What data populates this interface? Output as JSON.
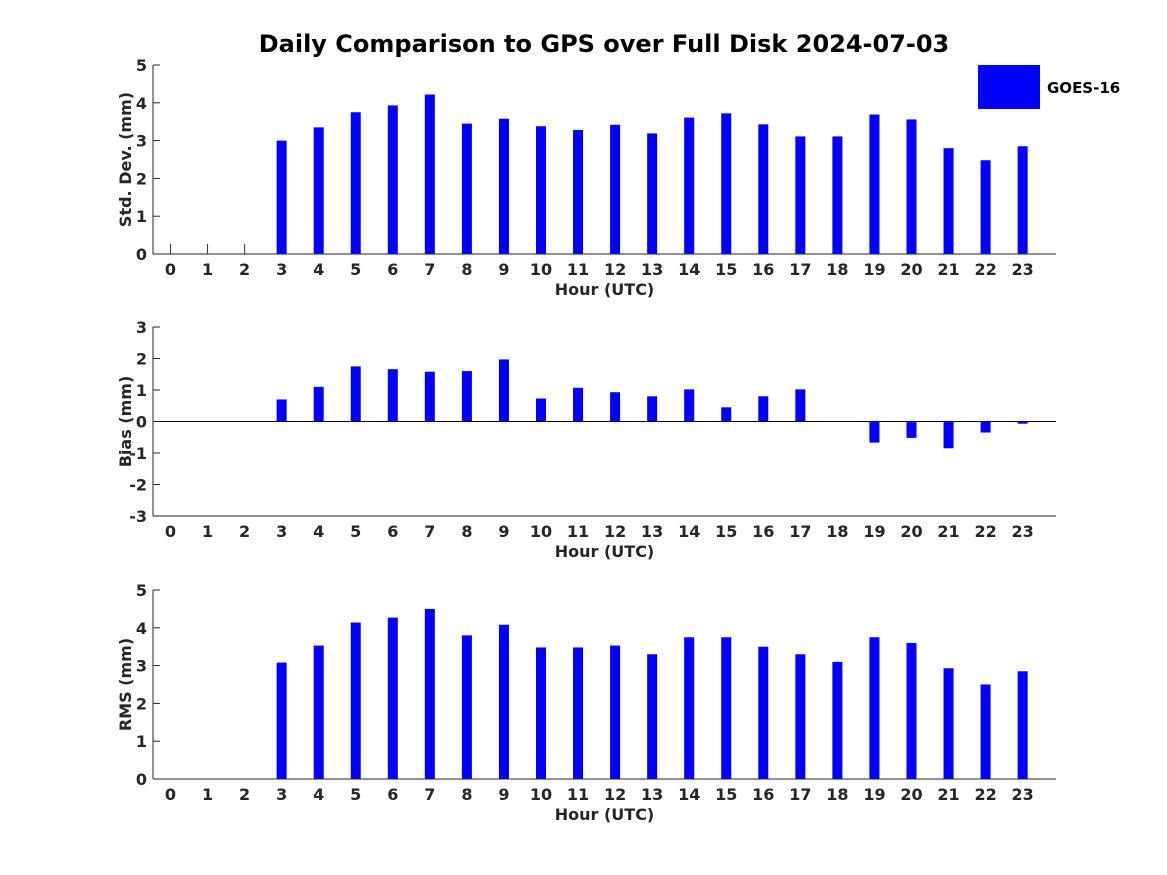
{
  "figure_title": "Daily Comparison to GPS over Full Disk 2024-07-03",
  "colors": {
    "bar": "#0000ff",
    "axis": "#262626"
  },
  "legend": {
    "label": "GOES-16",
    "position": "top-right"
  },
  "chart_data": [
    {
      "type": "bar",
      "categories": [
        "0",
        "1",
        "2",
        "3",
        "4",
        "5",
        "6",
        "7",
        "8",
        "9",
        "10",
        "11",
        "12",
        "13",
        "14",
        "15",
        "16",
        "17",
        "18",
        "19",
        "20",
        "21",
        "22",
        "23"
      ],
      "series": [
        {
          "name": "GOES-16",
          "values": [
            null,
            null,
            null,
            3.0,
            3.35,
            3.75,
            3.93,
            4.22,
            3.45,
            3.58,
            3.38,
            3.28,
            3.42,
            3.19,
            3.61,
            3.72,
            3.43,
            3.11,
            3.11,
            3.69,
            3.56,
            2.8,
            2.48,
            2.85
          ],
          "zero_markers": [
            true,
            true,
            true
          ]
        }
      ],
      "title": "",
      "xlabel": "Hour (UTC)",
      "ylabel": "Std. Dev. (mm)",
      "ylim": [
        0,
        5
      ],
      "yticks": [
        "0",
        "1",
        "2",
        "3",
        "4",
        "5"
      ]
    },
    {
      "type": "bar",
      "categories": [
        "0",
        "1",
        "2",
        "3",
        "4",
        "5",
        "6",
        "7",
        "8",
        "9",
        "10",
        "11",
        "12",
        "13",
        "14",
        "15",
        "16",
        "17",
        "18",
        "19",
        "20",
        "21",
        "22",
        "23"
      ],
      "series": [
        {
          "name": "GOES-16",
          "values": [
            null,
            null,
            null,
            0.7,
            1.1,
            1.75,
            1.66,
            1.58,
            1.6,
            1.97,
            0.73,
            1.07,
            0.93,
            0.8,
            1.02,
            0.45,
            0.8,
            1.02,
            null,
            -0.67,
            -0.52,
            -0.85,
            -0.35,
            -0.07
          ]
        }
      ],
      "title": "",
      "xlabel": "Hour (UTC)",
      "ylabel": "Bias (mm)",
      "ylim": [
        -3,
        3
      ],
      "yticks": [
        "-3",
        "-2",
        "-1",
        "0",
        "1",
        "2",
        "3"
      ],
      "zero_line": true
    },
    {
      "type": "bar",
      "categories": [
        "0",
        "1",
        "2",
        "3",
        "4",
        "5",
        "6",
        "7",
        "8",
        "9",
        "10",
        "11",
        "12",
        "13",
        "14",
        "15",
        "16",
        "17",
        "18",
        "19",
        "20",
        "21",
        "22",
        "23"
      ],
      "series": [
        {
          "name": "GOES-16",
          "values": [
            null,
            null,
            null,
            3.08,
            3.53,
            4.14,
            4.27,
            4.5,
            3.8,
            4.08,
            3.48,
            3.48,
            3.53,
            3.3,
            3.75,
            3.75,
            3.5,
            3.3,
            3.1,
            3.75,
            3.6,
            2.93,
            2.5,
            2.85
          ]
        }
      ],
      "title": "",
      "xlabel": "Hour (UTC)",
      "ylabel": "RMS (mm)",
      "ylim": [
        0,
        5
      ],
      "yticks": [
        "0",
        "1",
        "2",
        "3",
        "4",
        "5"
      ]
    }
  ]
}
